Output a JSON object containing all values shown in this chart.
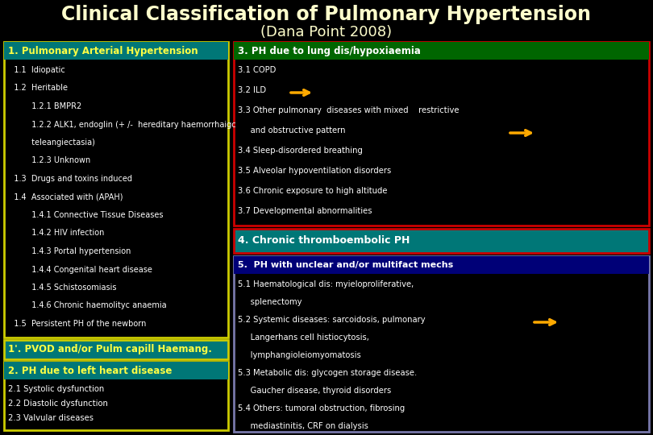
{
  "title_line1": "Clinical Classification of Pulmonary Hypertension",
  "title_line2": "(Dana Point 2008)",
  "bg_color": "#000000",
  "title_color": "#FFFFCC",
  "title_fs": 17,
  "subtitle_fs": 13,
  "box1_header": "1. Pulmonary Arterial Hypertension",
  "box1_header_bg": "#007777",
  "box1_border": "#CCCC00",
  "box1_bg": "#000000",
  "box1_header_color": "#FFFF44",
  "box1_lines": [
    [
      "   1.1  Idiopatic",
      0
    ],
    [
      "   1.2  Heritable",
      0
    ],
    [
      "          1.2.1 BMPR2",
      0
    ],
    [
      "          1.2.2 ALK1, endoglin (+ /-  hereditary haemorrhaigc",
      0
    ],
    [
      "          teleangiectasia)",
      0
    ],
    [
      "          1.2.3 Unknown",
      0
    ],
    [
      "   1.3  Drugs and toxins induced",
      0
    ],
    [
      "   1.4  Associated with (APAH)",
      0
    ],
    [
      "          1.4.1 Connective Tissue Diseases",
      0
    ],
    [
      "          1.4.2 HIV infection",
      0
    ],
    [
      "          1.4.3 Portal hypertension",
      0
    ],
    [
      "          1.4.4 Congenital heart disease",
      0
    ],
    [
      "          1.4.5 Schistosomiasis",
      0
    ],
    [
      "          1.4.6 Chronic haemolityc anaemia",
      0
    ],
    [
      "   1.5  Persistent PH of the newborn",
      0
    ]
  ],
  "box1p_header": "1'. PVOD and/or Pulm capill Haemang.",
  "box1p_bg": "#007777",
  "box1p_border": "#CCCC00",
  "box1p_text_color": "#FFFF44",
  "box2_header": "2. PH due to left heart disease",
  "box2_header_bg": "#007777",
  "box2_border": "#CCCC00",
  "box2_bg": "#000000",
  "box2_header_color": "#FFFF44",
  "box2_lines": [
    "2.1 Systolic dysfunction",
    "2.2 Diastolic dysfunction",
    "2.3 Valvular diseases"
  ],
  "box3_header": "3. PH due to lung dis/hypoxiaemia",
  "box3_header_bg": "#006600",
  "box3_border": "#CC0000",
  "box3_bg": "#000000",
  "box3_lines": [
    "3.1 COPD",
    "3.2 ILD",
    "3.3 Other pulmonary  diseases with mixed    restrictive",
    "     and obstructive pattern",
    "3.4 Sleep-disordered breathing",
    "3.5 Alveolar hypoventilation disorders",
    "3.6 Chronic exposure to high altitude",
    "3.7 Developmental abnormalities"
  ],
  "box4_header": "4. Chronic thromboembolic PH",
  "box4_bg": "#007777",
  "box4_border": "#CC0000",
  "box4_text_color": "#FFFFFF",
  "box5_header": "5.  PH with unclear and/or multifact mechs",
  "box5_header_bg": "#000077",
  "box5_border": "#7777AA",
  "box5_bg": "#000000",
  "box5_lines": [
    "5.1 Haematological dis: myieloproliferative,",
    "     splenectomy",
    "5.2 Systemic diseases: sarcoidosis, pulmonary",
    "     Langerhans cell histiocytosis,",
    "     lymphangioleiomyomatosis",
    "5.3 Metabolic dis: glycogen storage disease.",
    "     Gaucher disease, thyroid disorders",
    "5.4 Others: tumoral obstruction, fibrosing",
    "     mediastinitis, CRF on dialysis"
  ],
  "white": "#FFFFFF",
  "yellow": "#FFFF44",
  "arrow_color": "#FFAA00"
}
